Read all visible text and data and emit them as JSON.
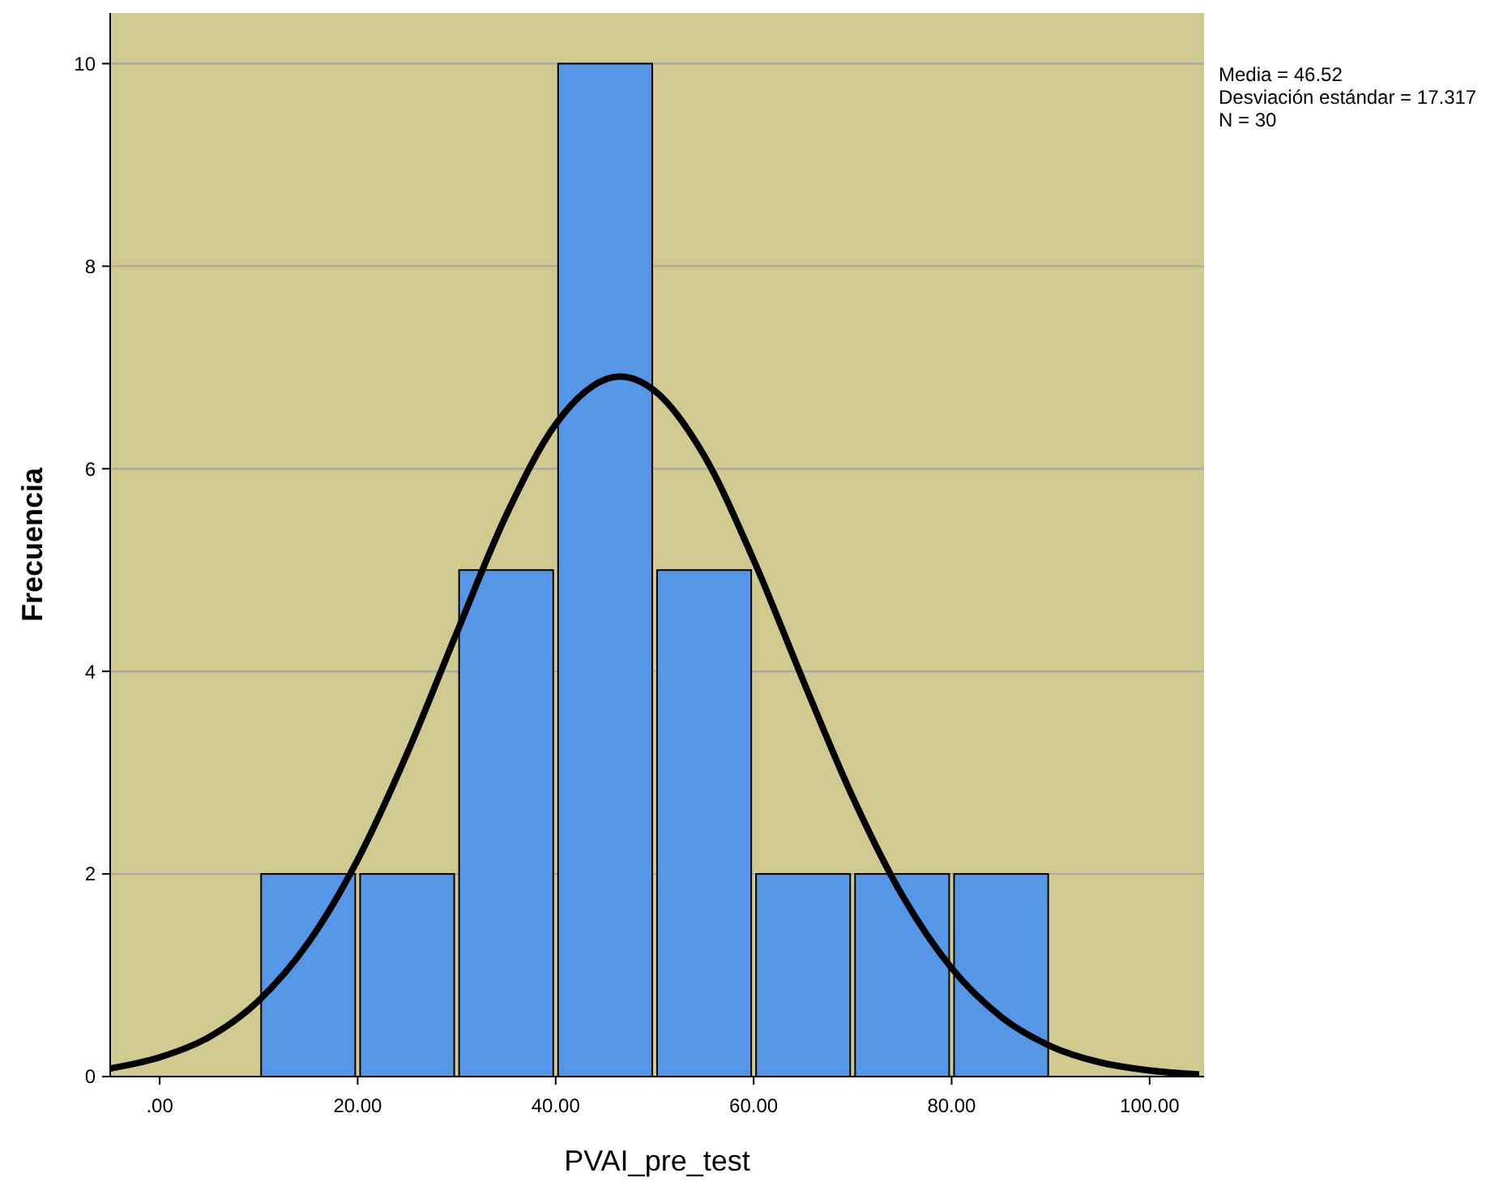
{
  "chart_data": {
    "type": "histogram",
    "xlabel": "PVAI_pre_test",
    "ylabel": "Frecuencia",
    "bins": [
      10,
      20,
      30,
      40,
      50,
      60,
      70,
      80,
      90
    ],
    "values": [
      2,
      2,
      5,
      10,
      5,
      2,
      2,
      2
    ],
    "color": "#5596e6",
    "xlim": [
      -5,
      105.5
    ],
    "xticks": [
      {
        "value": 0,
        "label": ".00"
      },
      {
        "value": 20,
        "label": "20.00"
      },
      {
        "value": 40,
        "label": "40.00"
      },
      {
        "value": 60,
        "label": "60.00"
      },
      {
        "value": 80,
        "label": "80.00"
      },
      {
        "value": 100,
        "label": "100.00"
      }
    ],
    "ylim": [
      0,
      10.5
    ],
    "yticks": [
      0,
      2,
      4,
      6,
      8,
      10
    ],
    "grid": "y",
    "series": [
      {
        "type": "line",
        "color": "#000000",
        "x": [
          -5,
          0,
          5,
          10,
          15,
          20,
          25,
          30,
          35,
          40,
          46.52,
          50,
          55,
          60,
          65,
          70,
          75,
          80,
          85,
          90,
          95,
          100,
          105
        ],
        "values": [
          0.08,
          0.19,
          0.39,
          0.75,
          1.32,
          2.14,
          3.19,
          4.38,
          5.54,
          6.44,
          6.91,
          6.77,
          6.13,
          5.1,
          3.91,
          2.76,
          1.79,
          1.07,
          0.59,
          0.3,
          0.14,
          0.06,
          0.02
        ]
      }
    ],
    "marker": "none",
    "line_style": "solid",
    "annotations": [
      "Media = 46.52",
      "Desviación estándar = 17.317",
      "N = 30"
    ]
  }
}
